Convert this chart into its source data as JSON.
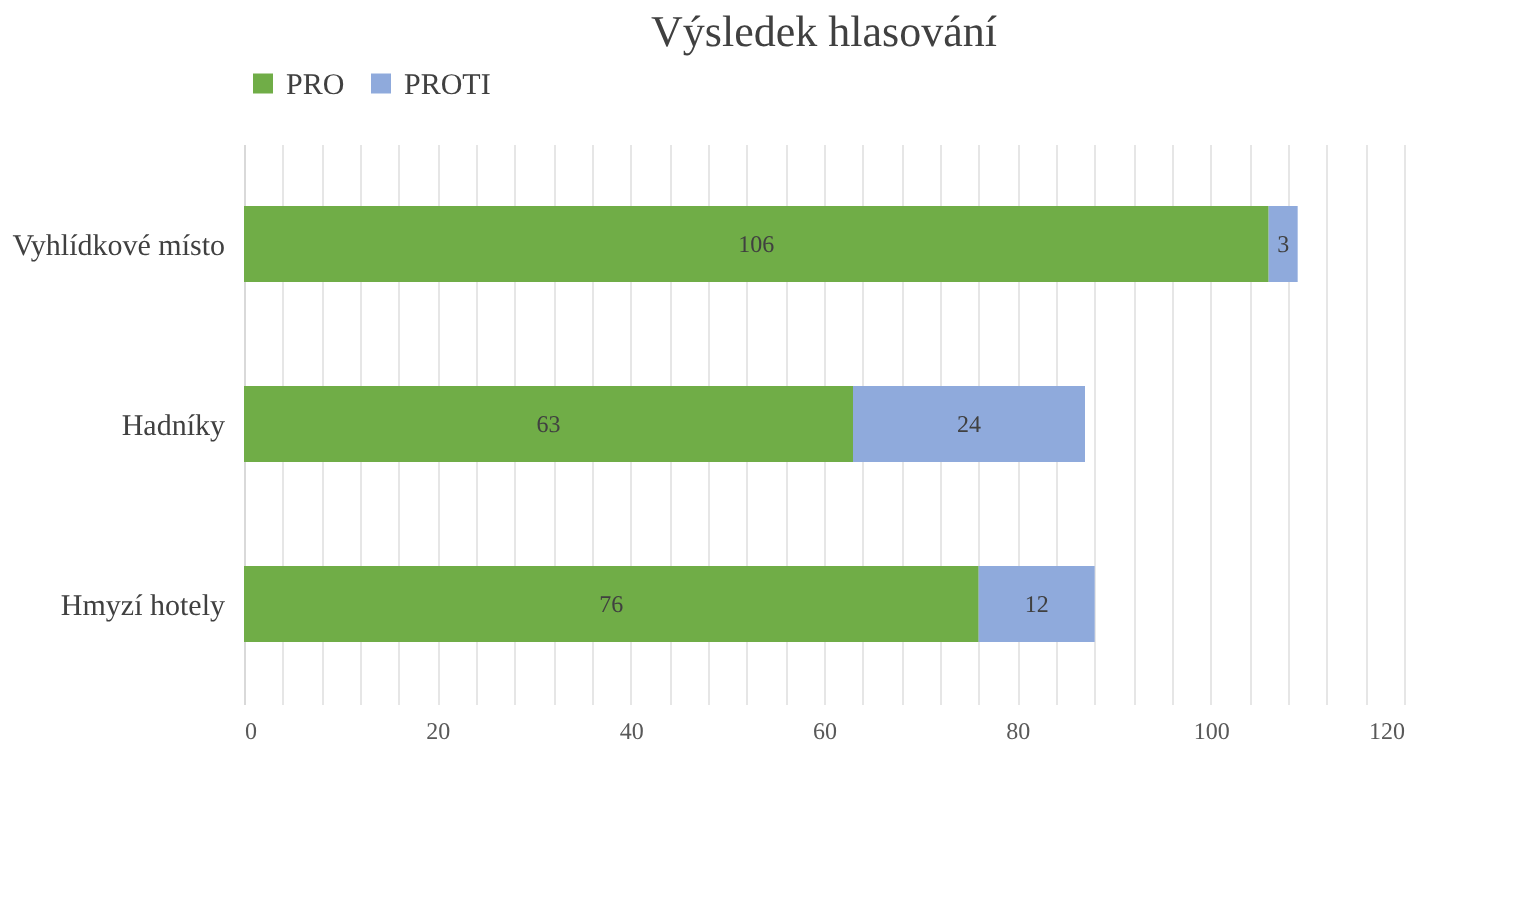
{
  "chart_data": {
    "type": "bar",
    "orientation": "horizontal",
    "stacked": true,
    "title": "Výsledek hlasování",
    "categories": [
      "Vyhlídkové místo",
      "Hadníky",
      "Hmyzí hotely"
    ],
    "series": [
      {
        "name": "PRO",
        "color": "#70ad47",
        "values": [
          106,
          63,
          76
        ]
      },
      {
        "name": "PROTI",
        "color": "#8faadc",
        "values": [
          3,
          24,
          12
        ]
      }
    ],
    "xlim": [
      0,
      120
    ],
    "xticks": [
      0,
      {
        "value": 4,
        "label": null
      },
      {
        "value": 8,
        "label": null
      },
      {
        "value": 12,
        "label": null
      },
      {
        "value": 16,
        "label": null
      },
      20,
      {
        "value": 24,
        "label": null
      },
      {
        "value": 28,
        "label": null
      },
      {
        "value": 32,
        "label": null
      },
      {
        "value": 36,
        "label": null
      },
      40,
      {
        "value": 44,
        "label": null
      },
      {
        "value": 48,
        "label": null
      },
      {
        "value": 52,
        "label": null
      },
      {
        "value": 56,
        "label": null
      },
      60,
      {
        "value": 64,
        "label": null
      },
      {
        "value": 68,
        "label": null
      },
      {
        "value": 72,
        "label": null
      },
      {
        "value": 76,
        "label": null
      },
      80,
      {
        "value": 84,
        "label": null
      },
      {
        "value": 88,
        "label": null
      },
      {
        "value": 92,
        "label": null
      },
      {
        "value": 96,
        "label": null
      },
      100,
      {
        "value": 104,
        "label": null
      },
      {
        "value": 108,
        "label": null
      },
      {
        "value": 112,
        "label": null
      },
      {
        "value": 116,
        "label": null
      },
      120
    ],
    "grid": "x",
    "legend": "top",
    "data_labels": true
  }
}
